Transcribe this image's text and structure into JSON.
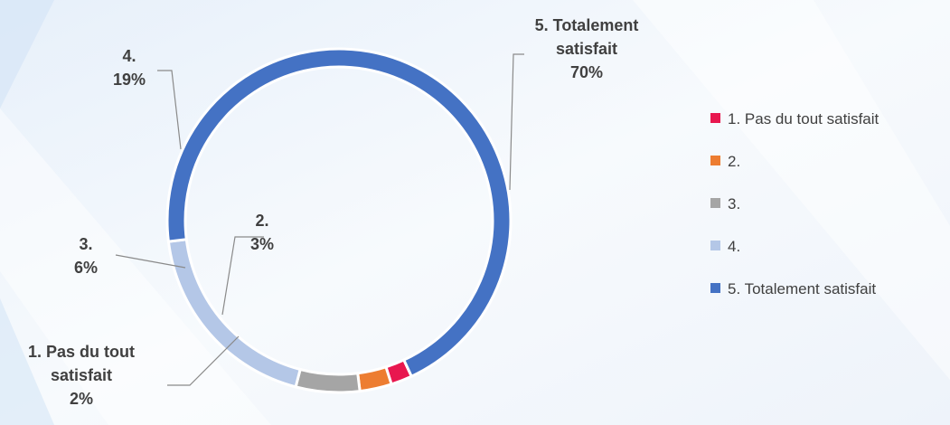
{
  "chart_data": {
    "type": "pie",
    "variant": "doughnut",
    "categories": [
      "1. Pas du tout satisfait",
      "2.",
      "3.",
      "4.",
      "5. Totalement satisfait"
    ],
    "values": [
      2,
      3,
      6,
      19,
      70
    ],
    "unit": "%",
    "colors": [
      "#E8174F",
      "#ED7D31",
      "#A5A5A5",
      "#B4C7E7",
      "#4472C4"
    ],
    "data_labels": [
      {
        "lines": [
          "1. Pas du tout",
          "satisfait",
          "2%"
        ]
      },
      {
        "lines": [
          "2.",
          "3%"
        ]
      },
      {
        "lines": [
          "3.",
          "6%"
        ]
      },
      {
        "lines": [
          "4.",
          "19%"
        ]
      },
      {
        "lines": [
          "5. Totalement",
          "satisfait",
          "70%"
        ]
      }
    ],
    "legend": {
      "position": "right",
      "entries": [
        "1. Pas du tout satisfait",
        "2.",
        "3.",
        "4.",
        "5. Totalement satisfait"
      ]
    }
  }
}
